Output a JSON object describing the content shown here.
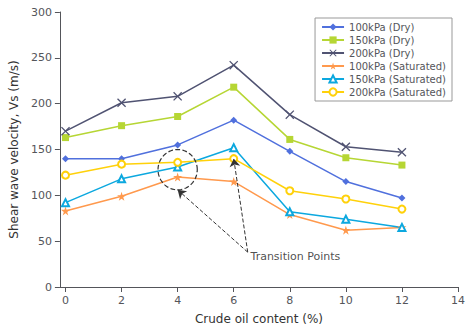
{
  "chart_data": {
    "type": "line",
    "x": [
      0,
      2,
      4,
      6,
      8,
      10,
      12
    ],
    "series": [
      {
        "name": "100kPa (Dry)",
        "marker": "diamond",
        "values": [
          140,
          140,
          155,
          182,
          148,
          115,
          97
        ]
      },
      {
        "name": "150kPa (Dry)",
        "marker": "square",
        "values": [
          163,
          176,
          186,
          218,
          161,
          141,
          133
        ]
      },
      {
        "name": "200kPa (Dry)",
        "marker": "x",
        "values": [
          170,
          201,
          208,
          242,
          188,
          153,
          147
        ]
      },
      {
        "name": "100kPa (Saturated)",
        "marker": "star",
        "values": [
          83,
          99,
          120,
          115,
          79,
          62,
          65
        ]
      },
      {
        "name": "150kPa (Saturated)",
        "marker": "triangle-open",
        "values": [
          92,
          118,
          131,
          152,
          82,
          74,
          65
        ]
      },
      {
        "name": "200kPa (Saturated)",
        "marker": "circle-open",
        "values": [
          122,
          134,
          136,
          140,
          105,
          96,
          85
        ]
      }
    ],
    "xlabel": "Crude oil content (%)",
    "ylabel": "Shear wave velocity, Vs (m/s)",
    "xlim": [
      -0.2,
      14
    ],
    "ylim": [
      0,
      300
    ],
    "xticks": [
      0,
      2,
      4,
      6,
      8,
      10,
      12,
      14
    ],
    "yticks": [
      0,
      50,
      100,
      150,
      200,
      250,
      300
    ],
    "grid": false,
    "legend": "upper right",
    "annotations": [
      {
        "text": "Transition Points",
        "x": 6.6,
        "y": 33,
        "arrows": [
          {
            "from": [
              6.5,
              38
            ],
            "to": [
              4.0,
              106
            ]
          },
          {
            "from": [
              6.5,
              38
            ],
            "to": [
              6.0,
              140
            ]
          }
        ],
        "ellipse": {
          "cx": 4.0,
          "cy": 128,
          "rx": 0.7,
          "ry": 22
        }
      }
    ]
  }
}
